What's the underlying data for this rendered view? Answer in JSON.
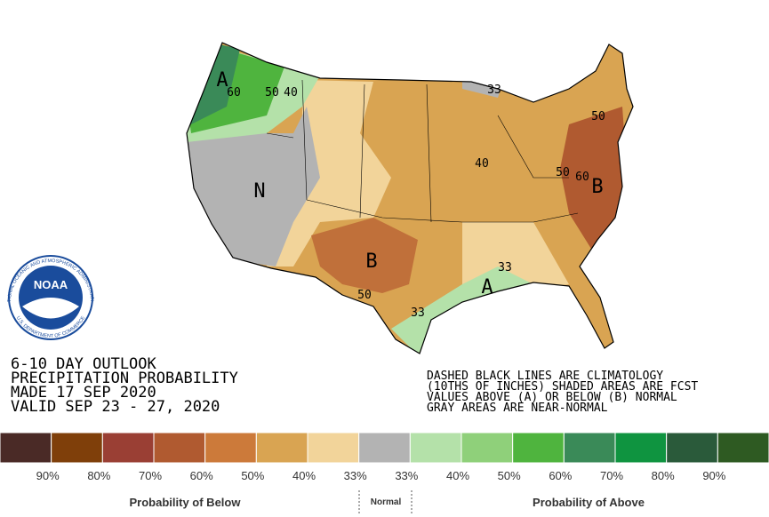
{
  "map": {
    "labels": [
      "A",
      "60",
      "50",
      "40",
      "N",
      "33",
      "40",
      "50",
      "50",
      "60",
      "B",
      "B",
      "50",
      "33",
      "A",
      "33"
    ]
  },
  "title_lines": [
    "6-10 DAY OUTLOOK",
    "PRECIPITATION PROBABILITY",
    "MADE  17 SEP 2020",
    "VALID  SEP 23 - 27, 2020"
  ],
  "notes": [
    "DASHED BLACK LINES ARE CLIMATOLOGY",
    "(10THS OF INCHES) SHADED AREAS ARE FCST",
    "VALUES ABOVE (A) OR BELOW (B) NORMAL",
    "GRAY AREAS ARE NEAR-NORMAL"
  ],
  "legend": {
    "colors": [
      "#4a2a26",
      "#7f3f0a",
      "#9a3f34",
      "#b05a30",
      "#cc7a3a",
      "#d9a452",
      "#f2d49a",
      "#b3b3b3",
      "#b4e1a9",
      "#8fd07a",
      "#4fb43e",
      "#3a8a58",
      "#0f9440",
      "#2a5a3a",
      "#2e5a22"
    ],
    "labels": [
      "90%",
      "80%",
      "70%",
      "60%",
      "50%",
      "40%",
      "33%",
      "33%",
      "40%",
      "50%",
      "60%",
      "70%",
      "80%",
      "90%"
    ]
  },
  "footer": {
    "below": "Probability of Below",
    "normal": "Normal",
    "above": "Probability of Above"
  },
  "logo": {
    "name": "NOAA",
    "ring_top": "NATIONAL OCEANIC AND ATMOSPHERIC ADMINISTRATION",
    "ring_bottom": "U.S. DEPARTMENT OF COMMERCE"
  }
}
